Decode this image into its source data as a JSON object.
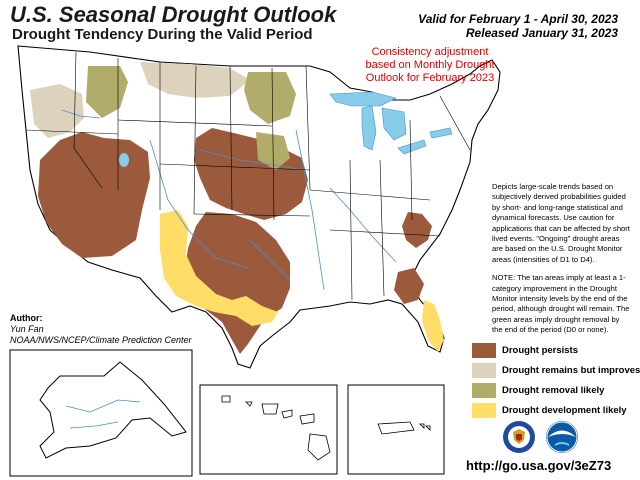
{
  "header": {
    "title": "U.S. Seasonal Drought Outlook",
    "subtitle": "Drought Tendency During the Valid Period",
    "valid": "Valid for February 1 - April 30, 2023",
    "released": "Released January 31, 2023"
  },
  "consistency_note": "Consistency adjustment based on Monthly Drought Outlook for February 2023",
  "description": {
    "p1": "Depicts large-scale trends based on subjectively derived probabilities guided by short- and long-range statistical and dynamical forecasts. Use caution for applications that can be affected by short lived events. \"Ongoing\" drought areas are based on the U.S. Drought Monitor areas (intensities of D1 to D4).",
    "p2": "NOTE: The tan areas imply at least a 1-category improvement in the Drought Monitor intensity levels by the end of the period, although drought will remain. The green areas imply drought removal by the end of the period (D0 or none)."
  },
  "author": {
    "label": "Author:",
    "name": "Yun Fan",
    "org": "NOAA/NWS/NCEP/Climate Prediction Center"
  },
  "legend": [
    {
      "label": "Drought persists",
      "color": "#9b5a3c"
    },
    {
      "label": "Drought remains but improves",
      "color": "#ddd3bd"
    },
    {
      "label": "Drought removal likely",
      "color": "#b2ac6b"
    },
    {
      "label": "Drought development likely",
      "color": "#ffdd66"
    }
  ],
  "colors": {
    "water": "#87cdea",
    "rivers": "#4a90c8",
    "borders": "#000000",
    "background": "#ffffff"
  },
  "logos": [
    "doc-seal-icon",
    "noaa-logo-icon"
  ],
  "url": "http://go.usa.gov/3eZ73"
}
